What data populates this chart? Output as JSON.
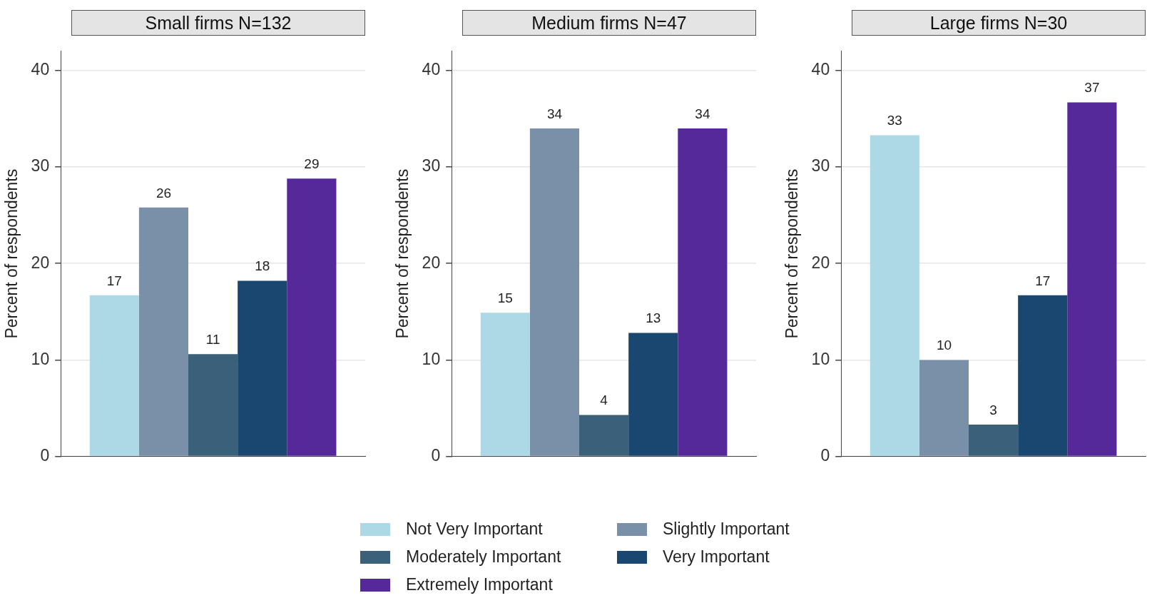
{
  "chart_data": [
    {
      "type": "bar",
      "title": "Small firms N=132",
      "ylabel": "Percent of respondents",
      "categories": [
        null
      ],
      "ylim": [
        0,
        42
      ],
      "yticks": [
        0,
        10,
        20,
        30,
        40
      ],
      "grid": "y",
      "legend": "bottom",
      "series": [
        {
          "name": "Not Very Important",
          "color": "#add8e6",
          "values": [
            16.7
          ],
          "value_labels": [
            "17"
          ]
        },
        {
          "name": "Slightly Important",
          "color": "#7a90a8",
          "values": [
            25.8
          ],
          "value_labels": [
            "26"
          ]
        },
        {
          "name": "Moderately Important",
          "color": "#3b6079",
          "values": [
            10.6
          ],
          "value_labels": [
            "11"
          ]
        },
        {
          "name": "Very Important",
          "color": "#1a476f",
          "values": [
            18.2
          ],
          "value_labels": [
            "18"
          ]
        },
        {
          "name": "Extremely Important",
          "color": "#55299a",
          "values": [
            28.8
          ],
          "value_labels": [
            "29"
          ]
        }
      ]
    },
    {
      "type": "bar",
      "title": "Medium firms N=47",
      "ylabel": "Percent of respondents",
      "categories": [
        null
      ],
      "ylim": [
        0,
        42
      ],
      "yticks": [
        0,
        10,
        20,
        30,
        40
      ],
      "grid": "y",
      "series": [
        {
          "color": "#add8e6",
          "values": [
            14.9
          ],
          "value_labels": [
            "15"
          ]
        },
        {
          "color": "#7a90a8",
          "values": [
            34.0
          ],
          "value_labels": [
            "34"
          ]
        },
        {
          "color": "#3b6079",
          "values": [
            4.3
          ],
          "value_labels": [
            "4"
          ]
        },
        {
          "color": "#1a476f",
          "values": [
            12.8
          ],
          "value_labels": [
            "13"
          ]
        },
        {
          "color": "#55299a",
          "values": [
            34.0
          ],
          "value_labels": [
            "34"
          ]
        }
      ]
    },
    {
      "type": "bar",
      "title": "Large firms N=30",
      "ylabel": "Percent of respondents",
      "categories": [
        null
      ],
      "ylim": [
        0,
        42
      ],
      "yticks": [
        0,
        10,
        20,
        30,
        40
      ],
      "grid": "y",
      "series": [
        {
          "color": "#add8e6",
          "values": [
            33.3
          ],
          "value_labels": [
            "33"
          ]
        },
        {
          "color": "#7a90a8",
          "values": [
            10.0
          ],
          "value_labels": [
            "10"
          ]
        },
        {
          "color": "#3b6079",
          "values": [
            3.3
          ],
          "value_labels": [
            "3"
          ]
        },
        {
          "color": "#1a476f",
          "values": [
            16.7
          ],
          "value_labels": [
            "17"
          ]
        },
        {
          "color": "#55299a",
          "values": [
            36.7
          ],
          "value_labels": [
            "37"
          ]
        }
      ]
    }
  ]
}
